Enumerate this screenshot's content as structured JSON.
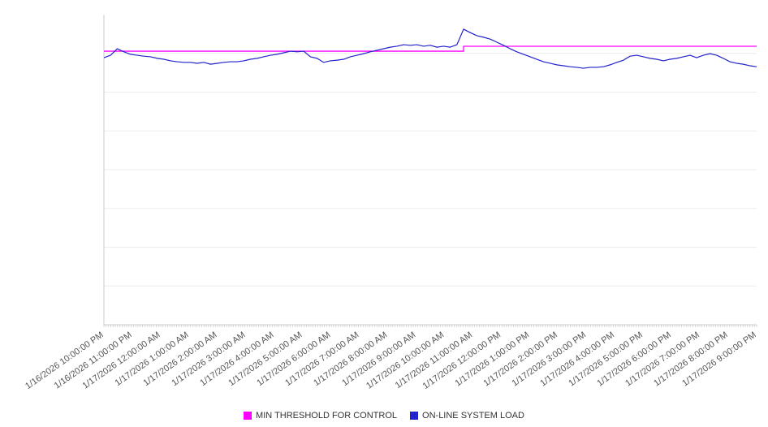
{
  "chart_data": {
    "type": "line",
    "title": "",
    "xlabel": "",
    "ylabel": "",
    "ylim": [
      0,
      100
    ],
    "grid": "horizontal",
    "grid_divisions": 8,
    "minor_ticks": 287,
    "legend_position": "bottom-center",
    "y_axis_tick_labels_visible": false,
    "x_labels": [
      "1/16/2026 10:00:00 PM",
      "1/16/2026 11:00:00 PM",
      "1/17/2026 12:00:00 AM",
      "1/17/2026 1:00:00 AM",
      "1/17/2026 2:00:00 AM",
      "1/17/2026 3:00:00 AM",
      "1/17/2026 4:00:00 AM",
      "1/17/2026 5:00:00 AM",
      "1/17/2026 6:00:00 AM",
      "1/17/2026 7:00:00 AM",
      "1/17/2026 8:00:00 AM",
      "1/17/2026 9:00:00 AM",
      "1/17/2026 10:00:00 AM",
      "1/17/2026 11:00:00 AM",
      "1/17/2026 12:00:00 PM",
      "1/17/2026 1:00:00 PM",
      "1/17/2026 2:00:00 PM",
      "1/17/2026 3:00:00 PM",
      "1/17/2026 4:00:00 PM",
      "1/17/2026 5:00:00 PM",
      "1/17/2026 6:00:00 PM",
      "1/17/2026 7:00:00 PM",
      "1/17/2026 8:00:00 PM",
      "1/17/2026 9:00:00 PM"
    ],
    "series": [
      {
        "name": "MIN THRESHOLD FOR CONTROL",
        "color": "#ff00ff",
        "style": "step",
        "points": [
          [
            0,
            88.2
          ],
          [
            0.551,
            88.2
          ],
          [
            0.551,
            89.8
          ],
          [
            1,
            89.8
          ]
        ]
      },
      {
        "name": "ON-LINE SYSTEM LOAD",
        "color": "#2222cc",
        "style": "line",
        "values": [
          86.1,
          86.9,
          89.0,
          88.0,
          87.2,
          86.9,
          86.6,
          86.4,
          85.9,
          85.6,
          85.1,
          84.8,
          84.6,
          84.6,
          84.3,
          84.6,
          84.0,
          84.3,
          84.6,
          84.8,
          84.8,
          85.1,
          85.6,
          85.9,
          86.4,
          86.9,
          87.2,
          87.7,
          88.2,
          88.0,
          88.2,
          86.4,
          85.9,
          84.6,
          85.1,
          85.3,
          85.6,
          86.4,
          86.9,
          87.4,
          88.0,
          88.5,
          89.0,
          89.5,
          89.8,
          90.3,
          90.1,
          90.3,
          89.8,
          90.1,
          89.5,
          89.8,
          89.5,
          90.3,
          95.3,
          94.2,
          93.2,
          92.7,
          92.1,
          91.1,
          90.1,
          89.0,
          88.0,
          87.2,
          86.4,
          85.6,
          84.8,
          84.3,
          83.8,
          83.5,
          83.2,
          83.0,
          82.7,
          83.0,
          83.0,
          83.2,
          83.8,
          84.6,
          85.3,
          86.6,
          86.9,
          86.4,
          85.9,
          85.6,
          85.1,
          85.6,
          85.9,
          86.4,
          86.9,
          86.1,
          86.9,
          87.4,
          86.9,
          85.9,
          84.8,
          84.3,
          84.0,
          83.5,
          83.2
        ]
      }
    ]
  }
}
